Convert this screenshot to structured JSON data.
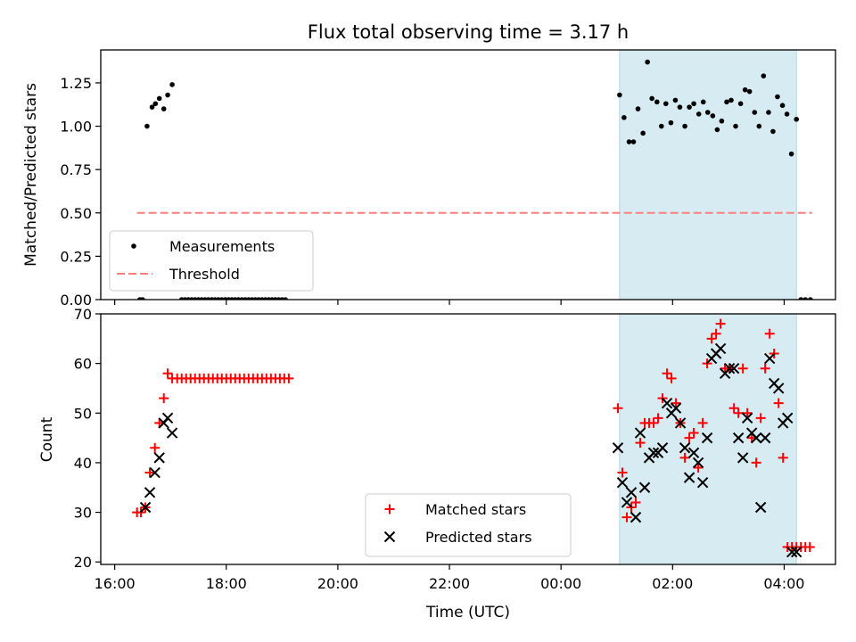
{
  "chart_data": [
    {
      "type": "scatter",
      "title": "Flux total observing time = 3.17 h",
      "xlabel": "",
      "ylabel": "Matched/Predicted stars",
      "xlim": [
        -0.25,
        12.92
      ],
      "ylim": [
        0,
        1.44
      ],
      "yticks": [
        0,
        0.25,
        0.5,
        0.75,
        1.0,
        1.25
      ],
      "ytick_labels": [
        "0.00",
        "0.25",
        "0.50",
        "0.75",
        "1.00",
        "1.25"
      ],
      "xticks": [
        0,
        2,
        4,
        6,
        8,
        10,
        12
      ],
      "shaded_region": {
        "x": [
          9.05,
          12.22
        ],
        "color": "#add8e6"
      },
      "legend": {
        "placement": "lower-left",
        "entries": [
          "Measurements",
          "Threshold"
        ]
      },
      "series": [
        {
          "name": "Measurements",
          "marker": "dot",
          "color": "#000000",
          "x": [
            0.45,
            0.5,
            0.58,
            0.67,
            0.73,
            0.8,
            0.88,
            0.95,
            1.03,
            1.2,
            1.26,
            1.32,
            1.38,
            1.44,
            1.5,
            1.56,
            1.62,
            1.68,
            1.74,
            1.8,
            1.86,
            1.92,
            1.98,
            2.04,
            2.1,
            2.16,
            2.22,
            2.28,
            2.34,
            2.4,
            2.46,
            2.52,
            2.58,
            2.64,
            2.7,
            2.76,
            2.82,
            2.88,
            2.94,
            3.0,
            3.06,
            9.05,
            9.13,
            9.22,
            9.3,
            9.38,
            9.47,
            9.55,
            9.63,
            9.72,
            9.8,
            9.88,
            9.97,
            10.05,
            10.13,
            10.22,
            10.3,
            10.38,
            10.47,
            10.55,
            10.63,
            10.72,
            10.8,
            10.88,
            10.97,
            11.05,
            11.13,
            11.22,
            11.3,
            11.38,
            11.47,
            11.55,
            11.63,
            11.72,
            11.8,
            11.88,
            11.97,
            12.05,
            12.13,
            12.22,
            12.3,
            12.38,
            12.47
          ],
          "y": [
            0,
            0,
            1.0,
            1.11,
            1.13,
            1.16,
            1.1,
            1.18,
            1.24,
            0,
            0,
            0,
            0,
            0,
            0,
            0,
            0,
            0,
            0,
            0,
            0,
            0,
            0,
            0,
            0,
            0,
            0,
            0,
            0,
            0,
            0,
            0,
            0,
            0,
            0,
            0,
            0,
            0,
            0,
            0,
            0,
            1.18,
            1.05,
            0.91,
            0.91,
            1.1,
            0.96,
            1.37,
            1.16,
            1.14,
            1.0,
            1.13,
            1.02,
            1.15,
            1.11,
            1.0,
            1.11,
            1.13,
            1.07,
            1.14,
            1.08,
            1.06,
            0.98,
            1.03,
            1.14,
            1.15,
            1.0,
            1.13,
            1.21,
            1.2,
            1.08,
            1.0,
            1.29,
            1.08,
            0.97,
            1.17,
            1.12,
            1.07,
            0.84,
            1.04,
            0,
            0,
            0
          ]
        },
        {
          "name": "Threshold",
          "style": "dashed",
          "color": "#ff7f7f",
          "x": [
            0.4,
            12.5
          ],
          "y": [
            0.5,
            0.5
          ]
        }
      ]
    },
    {
      "type": "scatter",
      "title": "",
      "xlabel": "Time (UTC)",
      "ylabel": "Count",
      "xlim": [
        -0.25,
        12.92
      ],
      "ylim": [
        19.5,
        70
      ],
      "yticks": [
        20,
        30,
        40,
        50,
        60,
        70
      ],
      "ytick_labels": [
        "20",
        "30",
        "40",
        "50",
        "60",
        "70"
      ],
      "xticks": [
        0,
        2,
        4,
        6,
        8,
        10,
        12
      ],
      "xtick_labels": [
        "16:00",
        "18:00",
        "20:00",
        "22:00",
        "00:00",
        "02:00",
        "04:00"
      ],
      "shaded_region": {
        "x": [
          9.05,
          12.22
        ],
        "color": "#add8e6"
      },
      "legend": {
        "placement": "lower-center",
        "entries": [
          "Matched stars",
          "Predicted stars"
        ]
      },
      "series": [
        {
          "name": "Matched stars",
          "marker": "plus",
          "color": "#ff0000",
          "x": [
            0.4,
            0.47,
            0.55,
            0.63,
            0.72,
            0.8,
            0.88,
            0.95,
            1.03,
            1.12,
            1.2,
            1.28,
            1.36,
            1.44,
            1.52,
            1.6,
            1.68,
            1.76,
            1.84,
            1.92,
            2.0,
            2.08,
            2.16,
            2.24,
            2.32,
            2.4,
            2.48,
            2.56,
            2.64,
            2.72,
            2.8,
            2.88,
            2.96,
            3.04,
            3.12,
            9.02,
            9.1,
            9.18,
            9.26,
            9.34,
            9.42,
            9.5,
            9.58,
            9.66,
            9.74,
            9.82,
            9.9,
            9.98,
            10.06,
            10.14,
            10.22,
            10.3,
            10.38,
            10.46,
            10.54,
            10.62,
            10.7,
            10.78,
            10.86,
            10.94,
            11.02,
            11.1,
            11.18,
            11.26,
            11.34,
            11.42,
            11.5,
            11.58,
            11.66,
            11.74,
            11.82,
            11.9,
            11.98,
            12.06,
            12.14,
            12.22,
            12.3,
            12.38,
            12.46
          ],
          "y": [
            30,
            30,
            31,
            38,
            43,
            48,
            53,
            58,
            57,
            57,
            57,
            57,
            57,
            57,
            57,
            57,
            57,
            57,
            57,
            57,
            57,
            57,
            57,
            57,
            57,
            57,
            57,
            57,
            57,
            57,
            57,
            57,
            57,
            57,
            57,
            51,
            38,
            29,
            31,
            32,
            44,
            48,
            48,
            48,
            49,
            53,
            58,
            57,
            52,
            48,
            41,
            45,
            46,
            39,
            48,
            60,
            65,
            66,
            68,
            59,
            59,
            51,
            50,
            59,
            50,
            45,
            40,
            49,
            59,
            66,
            62,
            52,
            41,
            23,
            23,
            23,
            23,
            23,
            23
          ]
        },
        {
          "name": "Predicted stars",
          "marker": "x",
          "color": "#000000",
          "x": [
            0.55,
            0.63,
            0.72,
            0.8,
            0.88,
            0.95,
            1.03,
            9.02,
            9.1,
            9.18,
            9.26,
            9.34,
            9.42,
            9.5,
            9.58,
            9.66,
            9.74,
            9.82,
            9.9,
            9.98,
            10.06,
            10.14,
            10.22,
            10.3,
            10.38,
            10.46,
            10.54,
            10.62,
            10.7,
            10.78,
            10.86,
            10.94,
            11.02,
            11.1,
            11.18,
            11.26,
            11.34,
            11.42,
            11.5,
            11.58,
            11.66,
            11.74,
            11.82,
            11.9,
            11.98,
            12.06,
            12.14,
            12.22
          ],
          "y": [
            31,
            34,
            38,
            41,
            48,
            49,
            46,
            43,
            36,
            32,
            34,
            29,
            46,
            35,
            41,
            42,
            42,
            43,
            52,
            50,
            51,
            48,
            43,
            37,
            42,
            40,
            36,
            45,
            61,
            62,
            63,
            58,
            59,
            59,
            45,
            41,
            49,
            46,
            45,
            31,
            45,
            61,
            56,
            55,
            48,
            49,
            22,
            22
          ]
        }
      ]
    }
  ]
}
